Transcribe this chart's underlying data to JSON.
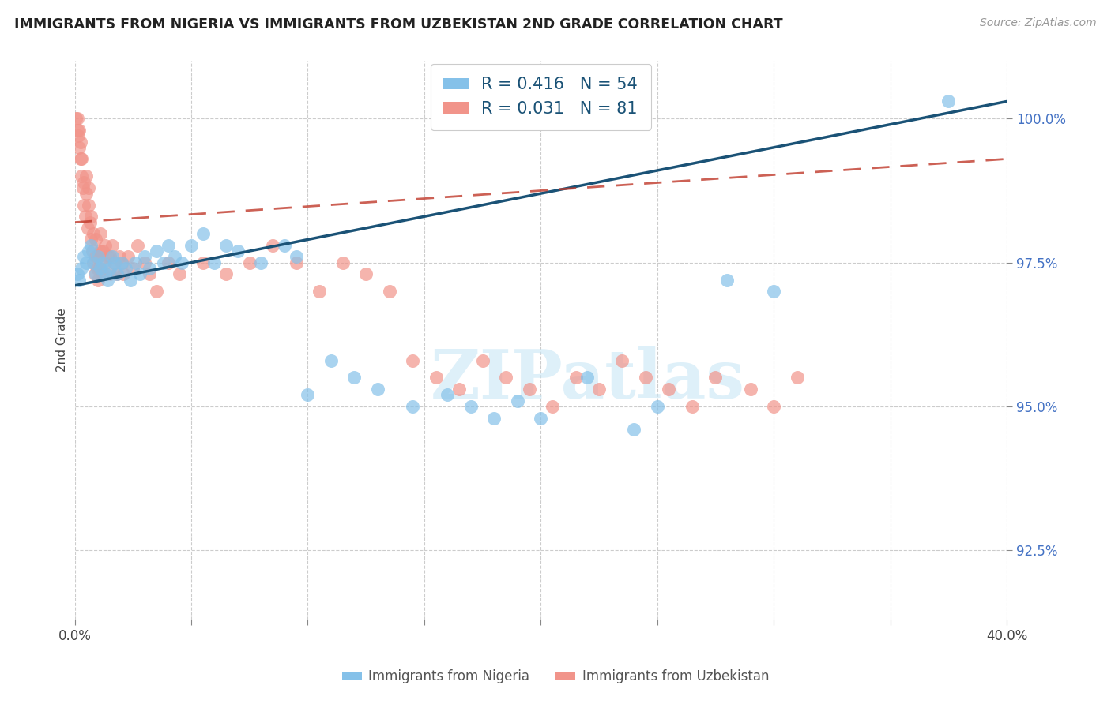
{
  "title": "IMMIGRANTS FROM NIGERIA VS IMMIGRANTS FROM UZBEKISTAN 2ND GRADE CORRELATION CHART",
  "source": "Source: ZipAtlas.com",
  "ylabel": "2nd Grade",
  "xmin": 0.0,
  "xmax": 40.0,
  "ymin": 91.3,
  "ymax": 101.0,
  "ytick_vals": [
    92.5,
    95.0,
    97.5,
    100.0
  ],
  "ytick_labels": [
    "92.5%",
    "95.0%",
    "97.5%",
    "100.0%"
  ],
  "xtick_vals": [
    0.0,
    5.0,
    10.0,
    15.0,
    20.0,
    25.0,
    30.0,
    35.0,
    40.0
  ],
  "xtick_labels": [
    "0.0%",
    "",
    "",
    "",
    "",
    "",
    "",
    "",
    "40.0%"
  ],
  "nigeria_R": 0.416,
  "nigeria_N": 54,
  "uzbekistan_R": 0.031,
  "uzbekistan_N": 81,
  "nigeria_color": "#85C1E9",
  "uzbekistan_color": "#F1948A",
  "nigeria_line_color": "#1A5276",
  "uzbekistan_line_color": "#C0392B",
  "watermark_text": "ZIPatlas",
  "nigeria_x": [
    0.1,
    0.2,
    0.3,
    0.4,
    0.5,
    0.6,
    0.7,
    0.8,
    0.9,
    1.0,
    1.1,
    1.2,
    1.3,
    1.4,
    1.5,
    1.6,
    1.7,
    1.8,
    2.0,
    2.2,
    2.4,
    2.6,
    2.8,
    3.0,
    3.2,
    3.5,
    3.8,
    4.0,
    4.3,
    4.6,
    5.0,
    5.5,
    6.0,
    6.5,
    7.0,
    8.0,
    9.0,
    9.5,
    10.0,
    11.0,
    12.0,
    13.0,
    14.5,
    16.0,
    17.0,
    18.0,
    19.0,
    20.0,
    22.0,
    24.0,
    25.0,
    28.0,
    30.0,
    37.5
  ],
  "nigeria_y": [
    97.3,
    97.2,
    97.4,
    97.6,
    97.5,
    97.7,
    97.8,
    97.5,
    97.3,
    97.6,
    97.4,
    97.5,
    97.3,
    97.2,
    97.4,
    97.6,
    97.5,
    97.3,
    97.5,
    97.4,
    97.2,
    97.5,
    97.3,
    97.6,
    97.4,
    97.7,
    97.5,
    97.8,
    97.6,
    97.5,
    97.8,
    98.0,
    97.5,
    97.8,
    97.7,
    97.5,
    97.8,
    97.6,
    95.2,
    95.8,
    95.5,
    95.3,
    95.0,
    95.2,
    95.0,
    94.8,
    95.1,
    94.8,
    95.5,
    94.6,
    95.0,
    97.2,
    97.0,
    100.3
  ],
  "uzbekistan_x": [
    0.05,
    0.1,
    0.1,
    0.15,
    0.2,
    0.2,
    0.25,
    0.25,
    0.3,
    0.3,
    0.35,
    0.4,
    0.4,
    0.45,
    0.5,
    0.5,
    0.55,
    0.6,
    0.6,
    0.65,
    0.7,
    0.7,
    0.75,
    0.8,
    0.8,
    0.85,
    0.9,
    0.9,
    0.95,
    1.0,
    1.0,
    1.05,
    1.1,
    1.1,
    1.2,
    1.2,
    1.3,
    1.3,
    1.4,
    1.5,
    1.5,
    1.6,
    1.7,
    1.8,
    1.9,
    2.0,
    2.1,
    2.3,
    2.5,
    2.7,
    3.0,
    3.2,
    3.5,
    4.0,
    4.5,
    5.5,
    6.5,
    7.5,
    8.5,
    9.5,
    10.5,
    11.5,
    12.5,
    13.5,
    14.5,
    15.5,
    16.5,
    17.5,
    18.5,
    19.5,
    20.5,
    21.5,
    22.5,
    23.5,
    24.5,
    25.5,
    26.5,
    27.5,
    29.0,
    30.0,
    31.0
  ],
  "uzbekistan_y": [
    100.0,
    99.8,
    100.0,
    99.7,
    99.5,
    99.8,
    99.3,
    99.6,
    99.0,
    99.3,
    98.8,
    98.5,
    98.9,
    98.3,
    98.7,
    99.0,
    98.1,
    98.5,
    98.8,
    98.2,
    97.9,
    98.3,
    97.7,
    97.5,
    98.0,
    97.3,
    97.6,
    97.9,
    97.4,
    97.2,
    97.6,
    97.4,
    97.7,
    98.0,
    97.3,
    97.7,
    97.5,
    97.8,
    97.6,
    97.3,
    97.6,
    97.8,
    97.5,
    97.3,
    97.6,
    97.5,
    97.3,
    97.6,
    97.4,
    97.8,
    97.5,
    97.3,
    97.0,
    97.5,
    97.3,
    97.5,
    97.3,
    97.5,
    97.8,
    97.5,
    97.0,
    97.5,
    97.3,
    97.0,
    95.8,
    95.5,
    95.3,
    95.8,
    95.5,
    95.3,
    95.0,
    95.5,
    95.3,
    95.8,
    95.5,
    95.3,
    95.0,
    95.5,
    95.3,
    95.0,
    95.5
  ]
}
